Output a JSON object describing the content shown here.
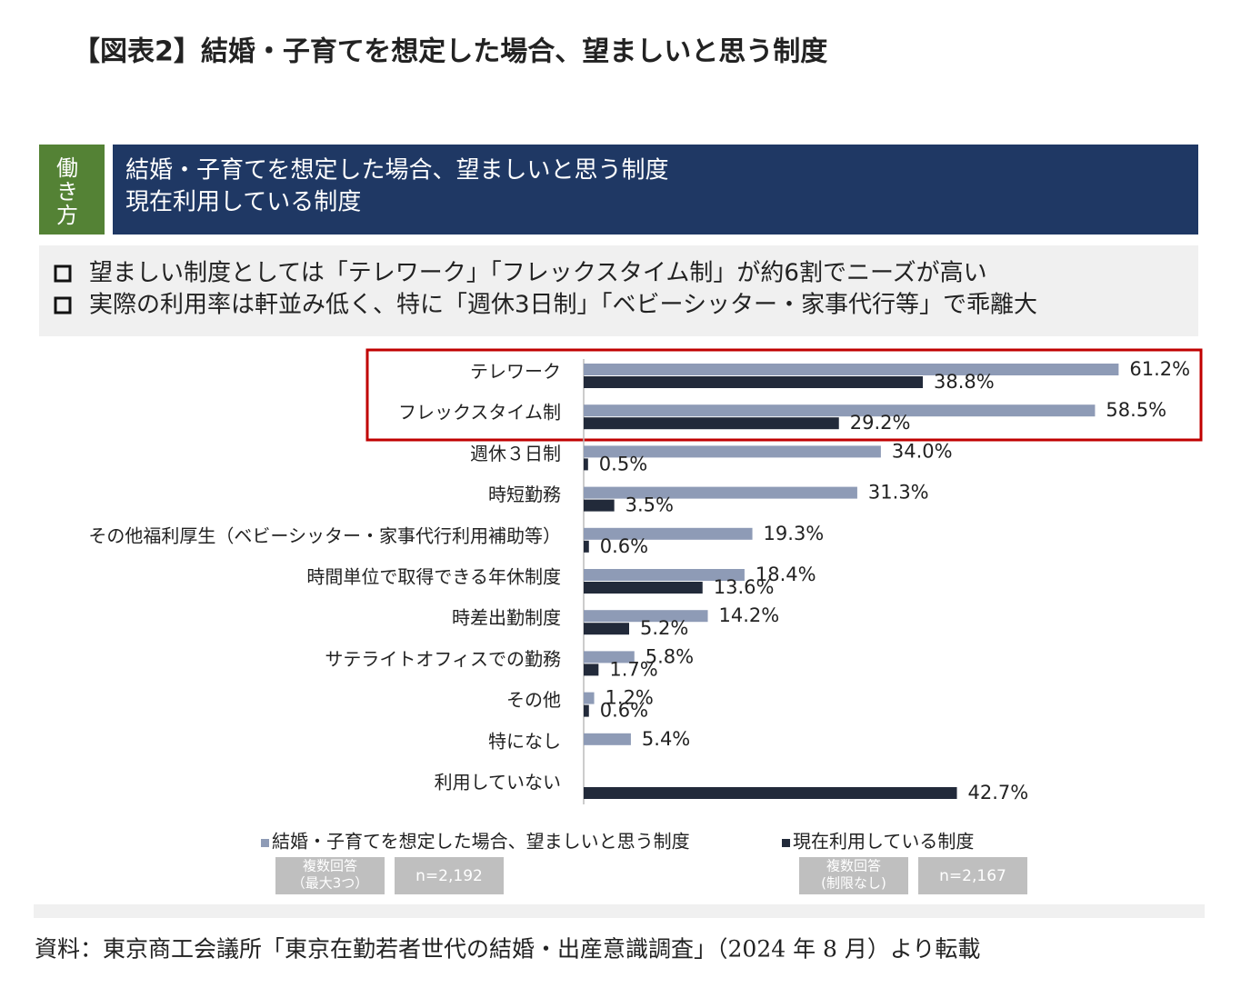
{
  "chart_data": {
    "type": "barh",
    "title": "【図表2】結婚・子育てを想定した場合、望ましいと思う制度",
    "tag": [
      "働",
      "き",
      "方"
    ],
    "subtitle": [
      "結婚・子育てを想定した場合、望ましいと思う制度",
      "現在利用している制度"
    ],
    "annotations": [
      "望ましい制度としては「テレワーク」「フレックスタイム制」が約6割でニーズが高い",
      "実際の利用率は軒並み低く、特に「週休3日制」「ベビーシッター・家事代行等」で乖離大"
    ],
    "categories": [
      "テレワーク",
      "フレックスタイム制",
      "週休３日制",
      "時短勤務",
      "その他福利厚生（ベビーシッター・家事代行利用補助等）",
      "時間単位で取得できる年休制度",
      "時差出勤制度",
      "サテライトオフィスでの勤務",
      "その他",
      "特になし",
      "利用していない"
    ],
    "series": [
      {
        "name": "結婚・子育てを想定した場合、望ましいと思う制度",
        "color": "#8e9bb6",
        "values": [
          61.2,
          58.5,
          34.0,
          31.3,
          19.3,
          18.4,
          14.2,
          5.8,
          1.2,
          5.4,
          null
        ],
        "value_labels": [
          "61.2%",
          "58.5%",
          "34.0%",
          "31.3%",
          "19.3%",
          "18.4%",
          "14.2%",
          "5.8%",
          "1.2%",
          "5.4%",
          null
        ],
        "note": [
          "複数回答",
          "（最大3つ）"
        ],
        "n": "n=2,192"
      },
      {
        "name": "現在利用している制度",
        "color": "#222a3a",
        "values": [
          38.8,
          29.2,
          0.5,
          3.5,
          0.6,
          13.6,
          5.2,
          1.7,
          0.6,
          null,
          42.7
        ],
        "value_labels": [
          "38.8%",
          "29.2%",
          "0.5%",
          "3.5%",
          "0.6%",
          "13.6%",
          "5.2%",
          "1.7%",
          "0.6%",
          null,
          "42.7%"
        ],
        "note": [
          "複数回答",
          "(制限なし)"
        ],
        "n": "n=2,167"
      }
    ],
    "xlim": [
      0,
      70
    ],
    "source": "資料：東京商工会議所「東京在勤若者世代の結婚・出産意識調査」（2024 年 8 月）より転載"
  }
}
